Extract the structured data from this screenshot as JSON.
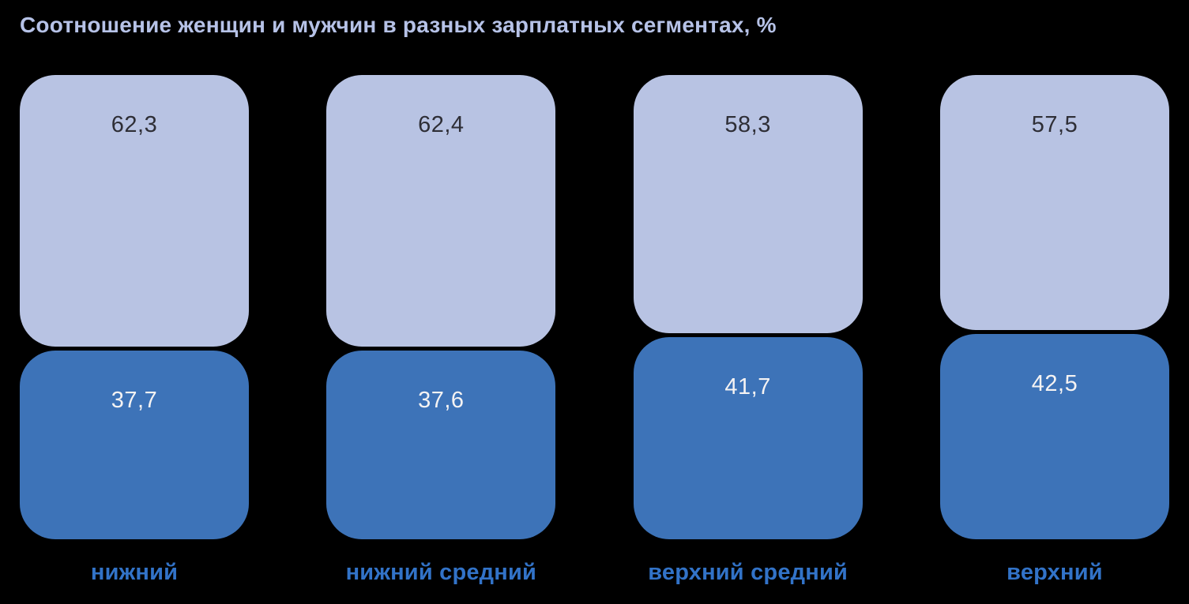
{
  "title": "Соотношение женщин и мужчин в разных зарплатных сегментах, %",
  "colors": {
    "background": "#000000",
    "top_segment_fill": "#b8c3e3",
    "bottom_segment_fill": "#3d73b8",
    "title_text": "#b6c2e7",
    "category_label_text": "#3273c8",
    "value_text_on_light": "#2e2e36",
    "value_text_on_dark": "#f5f3f3"
  },
  "chart_data": {
    "type": "bar",
    "variant": "stacked-column",
    "title": "Соотношение женщин и мужчин в разных зарплатных сегментах, %",
    "categories": [
      "нижний",
      "нижний средний",
      "верхний средний",
      "верхний"
    ],
    "series": [
      {
        "name": "top-light-segment",
        "values": [
          62.3,
          62.4,
          58.3,
          57.5
        ],
        "labels": [
          "62,3",
          "62,4",
          "58,3",
          "57,5"
        ],
        "color": "#b8c3e3"
      },
      {
        "name": "bottom-dark-segment",
        "values": [
          37.7,
          37.6,
          41.7,
          42.5
        ],
        "labels": [
          "37,7",
          "37,6",
          "41,7",
          "42,5"
        ],
        "color": "#3d73b8"
      }
    ],
    "ylim": [
      0,
      100
    ],
    "grid": false,
    "legend": "none",
    "value_format": "comma-decimal",
    "value_label_position": "inside-top",
    "category_label_position": "below"
  }
}
